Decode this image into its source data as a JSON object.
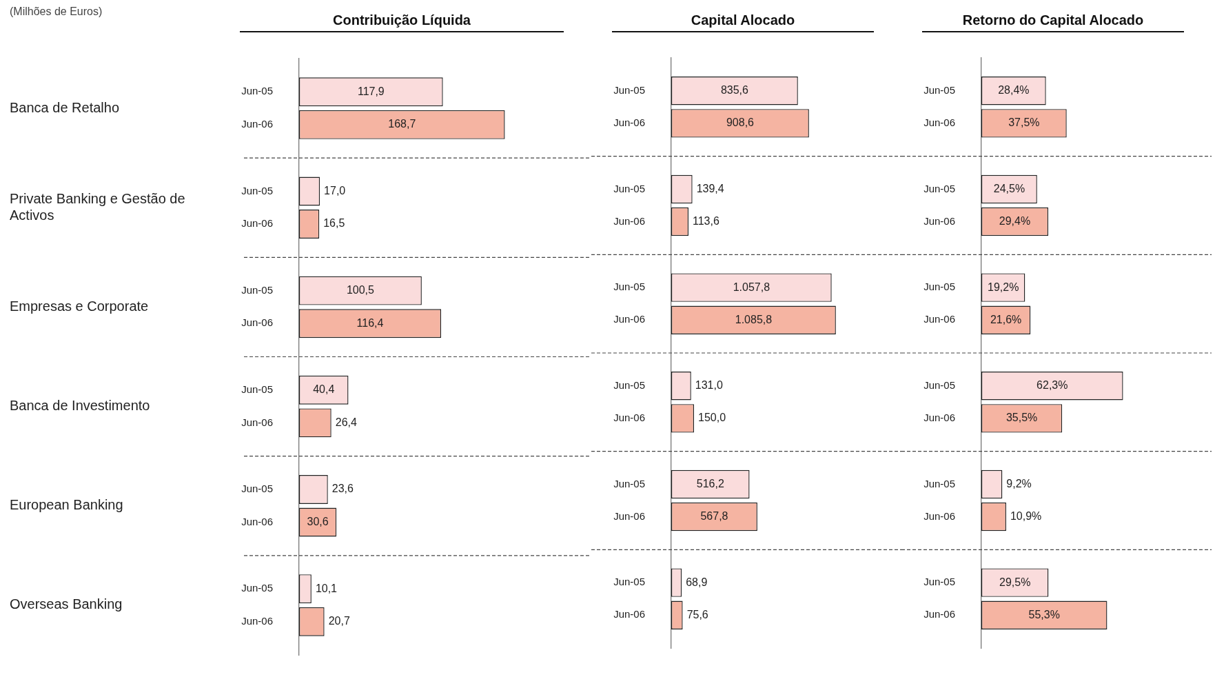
{
  "chart_data": [
    {
      "type": "bar",
      "orientation": "horizontal",
      "title": "Contribuição Líquida",
      "annotations": [
        "(Milhões de Euros)"
      ],
      "tick_labels": "y",
      "grid": "y",
      "categories": [
        "Banca de Retalho",
        "Private Banking e Gestão de Activos",
        "Empresas e Corporate",
        "Banca de Investimento",
        "European Banking",
        "Overseas Banking"
      ],
      "series": [
        {
          "name": "Jun-05",
          "color": "#fadcdc",
          "values": [
            117.9,
            17.0,
            100.5,
            40.4,
            23.6,
            10.1
          ],
          "value_labels": [
            "117,9",
            "17,0",
            "100,5",
            "40,4",
            "23,6",
            "10,1"
          ]
        },
        {
          "name": "Jun-06",
          "color": "#f5b4a2",
          "values": [
            168.7,
            16.5,
            116.4,
            26.4,
            30.6,
            20.7
          ],
          "value_labels": [
            "168,7",
            "16,5",
            "116,4",
            "26,4",
            "30,6",
            "20,7"
          ]
        }
      ]
    },
    {
      "type": "bar",
      "orientation": "horizontal",
      "title": "Capital Alocado",
      "tick_labels": false,
      "grid": "y",
      "categories": [
        null,
        null,
        null,
        null,
        null,
        null
      ],
      "series": [
        {
          "name": "Jun-05",
          "color": "#fadcdc",
          "values": [
            835.6,
            139.4,
            1057.8,
            131.0,
            516.2,
            68.9
          ],
          "value_labels": [
            "835,6",
            "139,4",
            "1.057,8",
            "131,0",
            "516,2",
            "68,9"
          ]
        },
        {
          "name": "Jun-06",
          "color": "#f5b4a2",
          "values": [
            908.6,
            113.6,
            1085.8,
            150.0,
            567.8,
            75.6
          ],
          "value_labels": [
            "908,6",
            "113,6",
            "1.085,8",
            "150,0",
            "567,8",
            "75,6"
          ]
        }
      ]
    },
    {
      "type": "bar",
      "orientation": "horizontal",
      "title": "Retorno do Capital Alocado",
      "tick_labels": false,
      "grid": "y",
      "categories": [
        null,
        null,
        null,
        null,
        null,
        null
      ],
      "series": [
        {
          "name": "Jun-05",
          "color": "#fadcdc",
          "values": [
            28.4,
            24.5,
            19.2,
            62.3,
            9.2,
            29.5
          ],
          "value_labels": [
            "28,4%",
            "24,5%",
            "19,2%",
            "62,3%",
            "9,2%",
            "29,5%"
          ]
        },
        {
          "name": "Jun-06",
          "color": "#f5b4a2",
          "values": [
            37.5,
            29.4,
            21.6,
            35.5,
            10.9,
            55.3
          ],
          "value_labels": [
            "37,5%",
            "29,4%",
            "21,6%",
            "35,5%",
            "10,9%",
            "55,3%"
          ]
        }
      ]
    }
  ]
}
